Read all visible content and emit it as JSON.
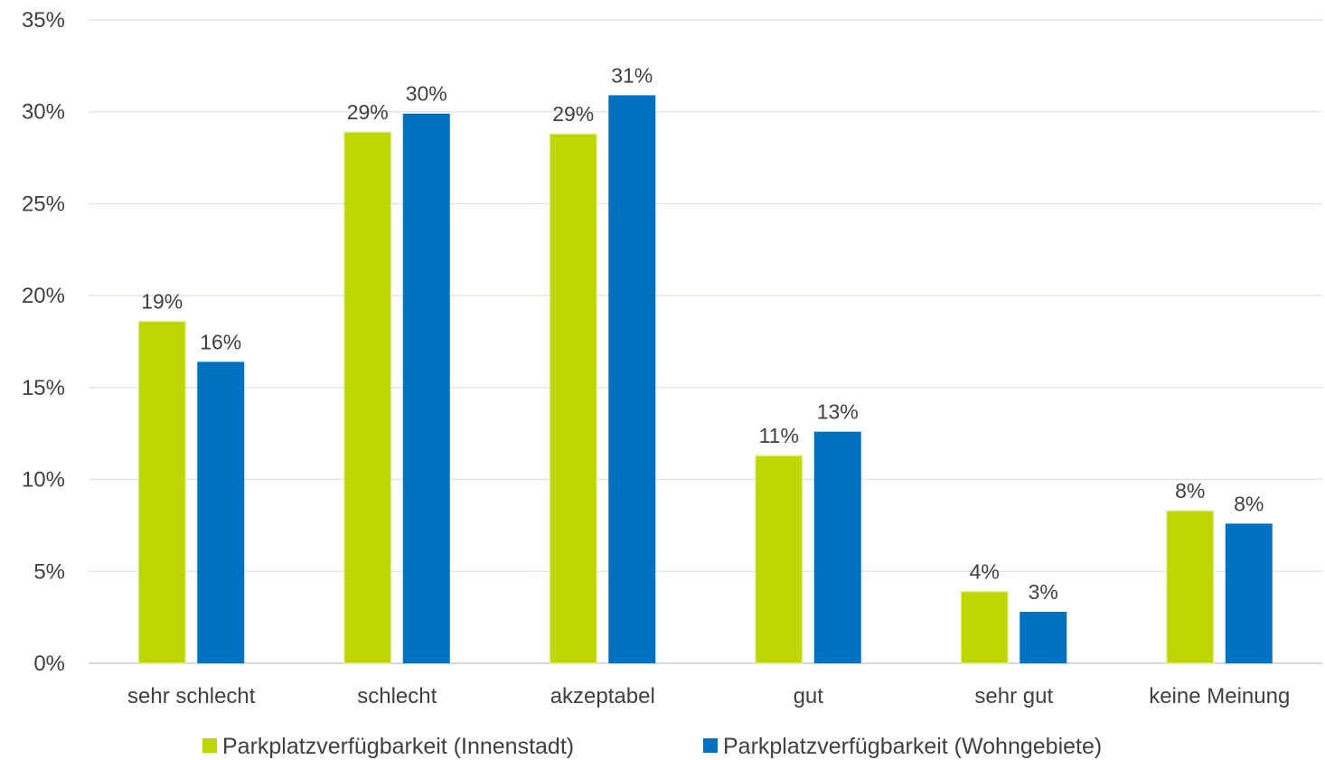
{
  "chart_data": {
    "type": "bar",
    "categories": [
      "sehr schlecht",
      "schlecht",
      "akzeptabel",
      "gut",
      "sehr gut",
      "keine Meinung"
    ],
    "series": [
      {
        "name": "Parkplatzverfügbarkeit (Innenstadt)",
        "color": "#BED600",
        "values": [
          18.6,
          28.9,
          28.8,
          11.3,
          3.9,
          8.3
        ],
        "labels": [
          "19%",
          "29%",
          "29%",
          "11%",
          "4%",
          "8%"
        ]
      },
      {
        "name": "Parkplatzverfügbarkeit (Wohngebiete)",
        "color": "#0070C0",
        "values": [
          16.4,
          29.9,
          30.9,
          12.6,
          2.8,
          7.6
        ],
        "labels": [
          "16%",
          "30%",
          "31%",
          "13%",
          "3%",
          "8%"
        ]
      }
    ],
    "ylim": [
      0,
      35
    ],
    "yticks": [
      0,
      5,
      10,
      15,
      20,
      25,
      30,
      35
    ],
    "ytick_labels": [
      "0%",
      "5%",
      "10%",
      "15%",
      "20%",
      "25%",
      "30%",
      "35%"
    ],
    "title": "",
    "xlabel": "",
    "ylabel": "",
    "grid": true,
    "legend_position": "bottom"
  }
}
